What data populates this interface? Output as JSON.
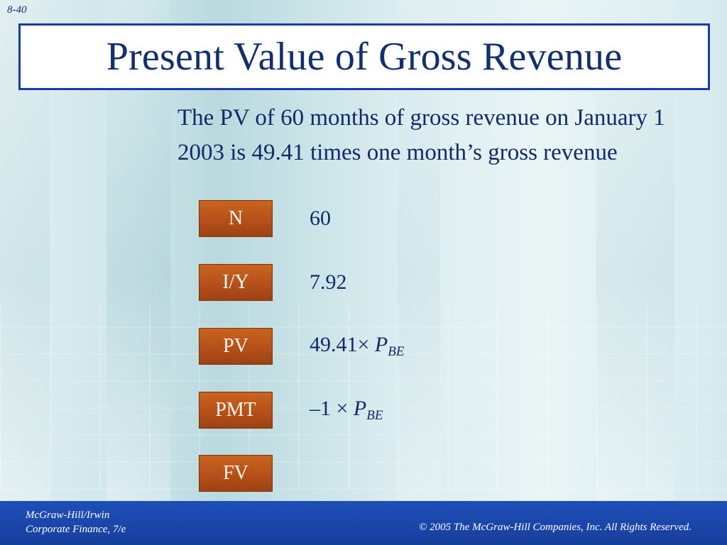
{
  "slide_number": "8-40",
  "title": "Present Value of Gross Revenue",
  "body_text": "The PV of 60 months of gross revenue on January 1 2003 is 49.41 times one month’s gross revenue",
  "calculator_keys": [
    {
      "label": "N",
      "value_prefix": "60",
      "value_var": "",
      "value_sub": ""
    },
    {
      "label": "I/Y",
      "value_prefix": "7.92",
      "value_var": "",
      "value_sub": ""
    },
    {
      "label": "PV",
      "value_prefix": "49.41× ",
      "value_var": "P",
      "value_sub": "BE"
    },
    {
      "label": "PMT",
      "value_prefix": "–1 × ",
      "value_var": "P",
      "value_sub": "BE"
    },
    {
      "label": "FV",
      "value_prefix": "",
      "value_var": "",
      "value_sub": ""
    }
  ],
  "footer": {
    "publisher": "McGraw-Hill/Irwin",
    "book": "Corporate Finance, 7/e",
    "copyright": "© 2005  The McGraw-Hill Companies, Inc.  All Rights Reserved."
  },
  "colors": {
    "title_border": "#1a3aa6",
    "key_fill": "#b5501a",
    "text": "#102a6a",
    "footer": "#1d4fb8"
  }
}
